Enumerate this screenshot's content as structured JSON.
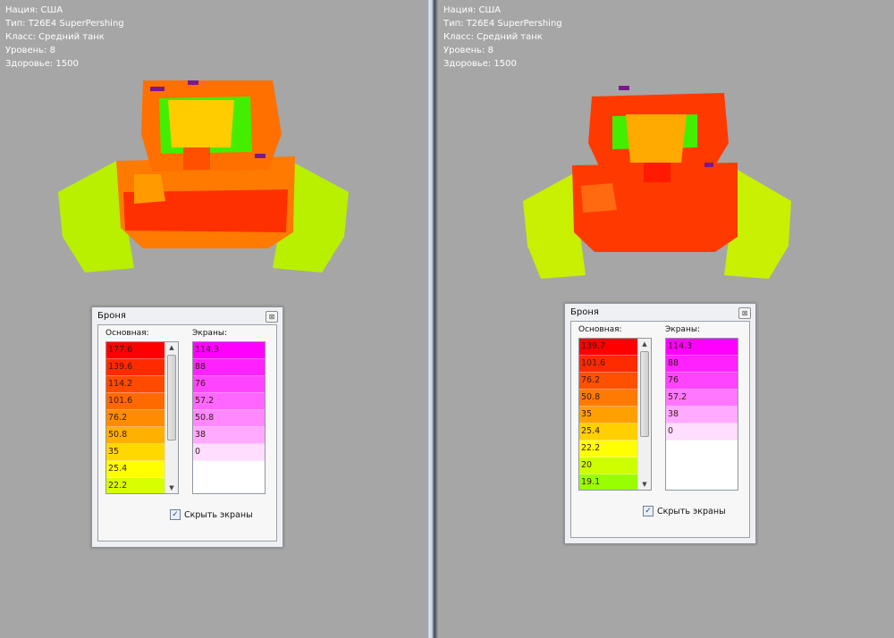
{
  "panels": [
    {
      "info": [
        "Нация: США",
        "Тип: T26E4 SuperPershing",
        "Класс: Средний танк",
        "Уровень: 8",
        "Здоровье: 1500"
      ],
      "dialog": {
        "title": "Броня",
        "main_label": "Основная:",
        "screens_label": "Экраны:",
        "main": [
          {
            "v": "177.6",
            "c": "#ff0000"
          },
          {
            "v": "139.6",
            "c": "#ff2a00"
          },
          {
            "v": "114.2",
            "c": "#ff4a00"
          },
          {
            "v": "101.6",
            "c": "#ff6a00"
          },
          {
            "v": "76.2",
            "c": "#ff8c00"
          },
          {
            "v": "50.8",
            "c": "#ffb000"
          },
          {
            "v": "35",
            "c": "#ffd800"
          },
          {
            "v": "25.4",
            "c": "#ffff00"
          },
          {
            "v": "22.2",
            "c": "#d8ff00"
          }
        ],
        "screens": [
          {
            "v": "114.3",
            "c": "#ff00ff"
          },
          {
            "v": "88",
            "c": "#ff22ff"
          },
          {
            "v": "76",
            "c": "#ff44ff"
          },
          {
            "v": "57.2",
            "c": "#ff66ff"
          },
          {
            "v": "50.8",
            "c": "#ff88ff"
          },
          {
            "v": "38",
            "c": "#ffaaff"
          },
          {
            "v": "0",
            "c": "#ffddff"
          }
        ],
        "checkbox_label": "Скрыть экраны",
        "checkbox_checked": true
      }
    },
    {
      "info": [
        "Нация: США",
        "Тип: T26E4 SuperPershing",
        "Класс: Средний танк",
        "Уровень: 8",
        "Здоровье: 1500"
      ],
      "dialog": {
        "title": "Броня",
        "main_label": "Основная:",
        "screens_label": "Экраны:",
        "main": [
          {
            "v": "139.7",
            "c": "#ff0000"
          },
          {
            "v": "101.6",
            "c": "#ff2a00"
          },
          {
            "v": "76.2",
            "c": "#ff5000"
          },
          {
            "v": "50.8",
            "c": "#ff7a00"
          },
          {
            "v": "35",
            "c": "#ffa000"
          },
          {
            "v": "25.4",
            "c": "#ffd000"
          },
          {
            "v": "22.2",
            "c": "#ffff00"
          },
          {
            "v": "20",
            "c": "#ccff00"
          },
          {
            "v": "19.1",
            "c": "#99ff00"
          }
        ],
        "screens": [
          {
            "v": "114.3",
            "c": "#ff00ff"
          },
          {
            "v": "88",
            "c": "#ff22ff"
          },
          {
            "v": "76",
            "c": "#ff44ff"
          },
          {
            "v": "57.2",
            "c": "#ff77ff"
          },
          {
            "v": "38",
            "c": "#ffaaff"
          },
          {
            "v": "0",
            "c": "#ffddff"
          }
        ],
        "checkbox_label": "Скрыть экраны",
        "checkbox_checked": true
      }
    }
  ]
}
